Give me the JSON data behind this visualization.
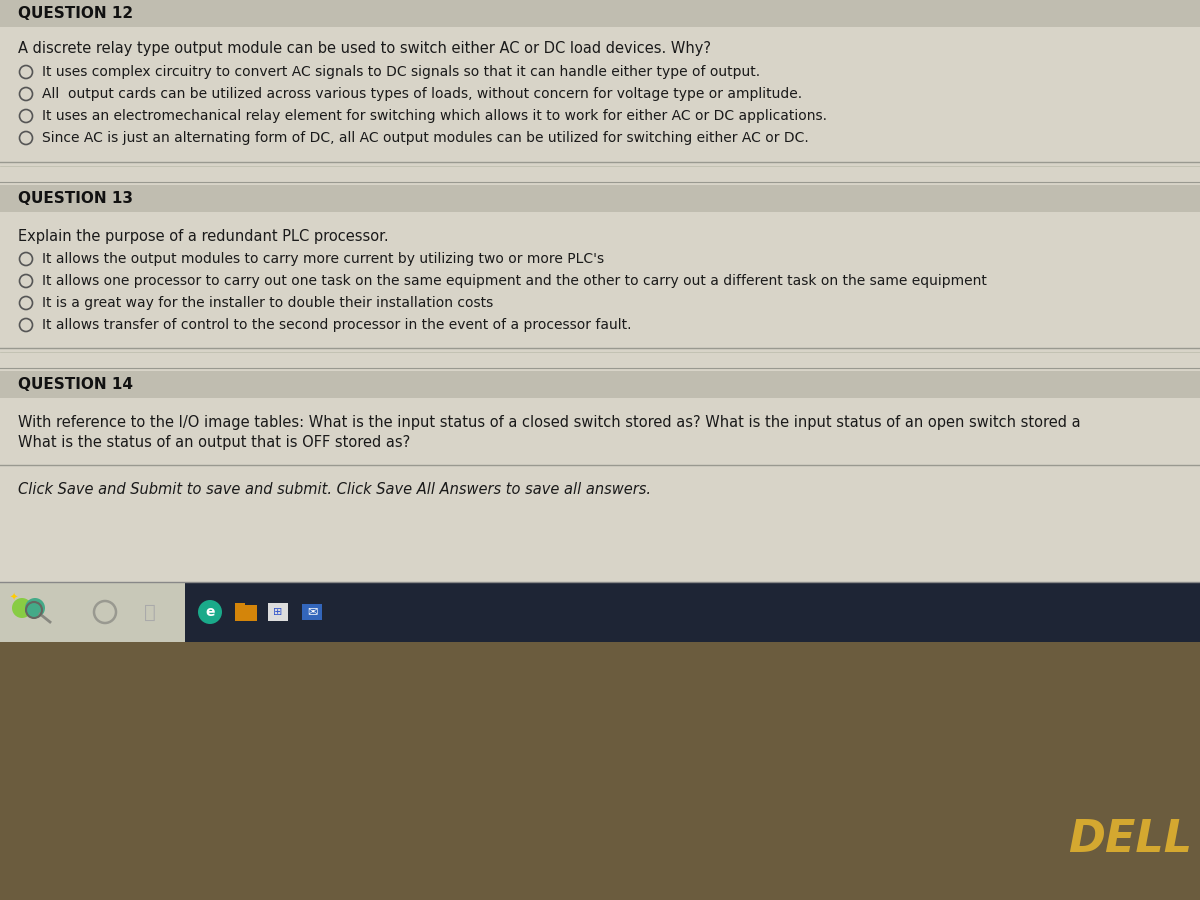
{
  "bg_color": "#c8c8c0",
  "content_bg": "#d8d4c8",
  "question_header_bg": "#c0bdb0",
  "text_color": "#1a1a1a",
  "question_header_color": "#111111",
  "q12_header": "QUESTION 12",
  "q12_question": "A discrete relay type output module can be used to switch either AC or DC load devices. Why?",
  "q12_options": [
    "It uses complex circuitry to convert AC signals to DC signals so that it can handle either type of output.",
    "All  output cards can be utilized across various types of loads, without concern for voltage type or amplitude.",
    "It uses an electromechanical relay element for switching which allows it to work for either AC or DC applications.",
    "Since AC is just an alternating form of DC, all AC output modules can be utilized for switching either AC or DC."
  ],
  "q13_header": "QUESTION 13",
  "q13_question": "Explain the purpose of a redundant PLC processor.",
  "q13_options": [
    "It allows the output modules to carry more current by utilizing two or more PLC's",
    "It allows one processor to carry out one task on the same equipment and the other to carry out a different task on the same equipment",
    "It is a great way for the installer to double their installation costs",
    "It allows transfer of control to the second processor in the event of a processor fault."
  ],
  "q14_header": "QUESTION 14",
  "q14_line1": "With reference to the I/O image tables: What is the input status of a closed switch stored as? What is the input status of an open switch stored a",
  "q14_line2": "What is the status of an output that is OFF stored as?",
  "footer_text": "Click Save and Submit to save and submit. Click Save All Answers to save all answers.",
  "taskbar_bg": "#1e2535",
  "taskbar_light_bg": "#c8c8b8",
  "dell_text": "DELL",
  "dell_color": "#d4a830",
  "bottom_bar_bg": "#6b5c3e",
  "separator_color": "#aaaaaa",
  "radio_color": "#555555"
}
